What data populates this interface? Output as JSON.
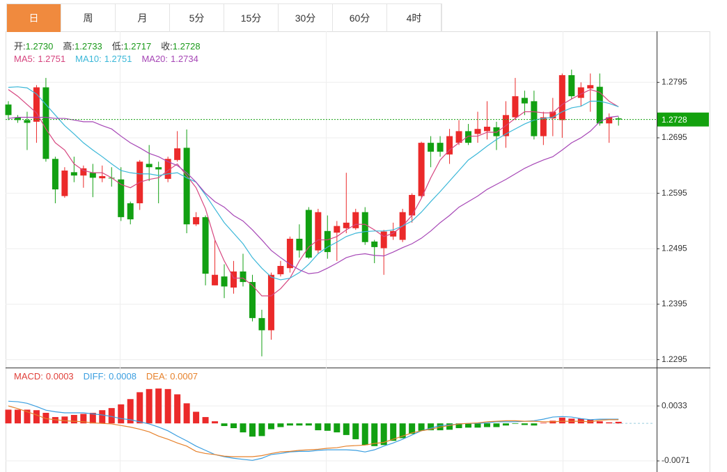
{
  "tabs": [
    "日",
    "周",
    "月",
    "5分",
    "15分",
    "30分",
    "60分",
    "4时"
  ],
  "active_tab": 0,
  "chart_data": [
    {
      "type": "candlestick",
      "up_color": "#eb2a2a",
      "down_color": "#12a012",
      "quote_color": "#1a9a1a",
      "quote": [
        {
          "name": "开:",
          "value": "1.2730"
        },
        {
          "name": "高:",
          "value": "1.2733"
        },
        {
          "name": "低:",
          "value": "1.2717"
        },
        {
          "name": "收:",
          "value": "1.2728"
        }
      ],
      "open": [
        1.2755,
        1.2732,
        1.2727,
        1.2724,
        1.2786,
        1.2657,
        1.259,
        1.2633,
        1.2627,
        1.2632,
        1.2622,
        1.2623,
        1.262,
        1.2577,
        1.2577,
        1.2648,
        1.2642,
        1.2621,
        1.2655,
        1.2677,
        1.2539,
        1.2552,
        1.2429,
        1.2445,
        1.2425,
        1.2454,
        1.2435,
        1.237,
        1.2348,
        1.2449,
        1.246,
        1.2513,
        1.2565,
        1.2492,
        1.2527,
        1.2524,
        1.2532,
        1.2532,
        1.2561,
        1.2508,
        1.2496,
        1.2517,
        1.2511,
        1.2555,
        1.259,
        1.2686,
        1.2686,
        1.2665,
        1.2686,
        1.2707,
        1.2702,
        1.2707,
        1.2714,
        1.2698,
        1.2732,
        1.2767,
        1.2761,
        1.2698,
        1.273,
        1.2727,
        1.2808,
        1.2767,
        1.2784,
        1.2787,
        1.2721,
        1.273
      ],
      "high": [
        1.2761,
        1.2736,
        1.2742,
        1.279,
        1.2803,
        1.2661,
        1.2642,
        1.2661,
        1.2645,
        1.2648,
        1.2645,
        1.2642,
        1.2642,
        1.258,
        1.2655,
        1.2682,
        1.2652,
        1.2661,
        1.2707,
        1.271,
        1.2561,
        1.2555,
        1.2511,
        1.2467,
        1.2473,
        1.2486,
        1.2448,
        1.2385,
        1.2452,
        1.2473,
        1.2517,
        1.2539,
        1.257,
        1.2567,
        1.2555,
        1.2545,
        1.2632,
        1.2567,
        1.257,
        1.2511,
        1.2529,
        1.2542,
        1.2567,
        1.2595,
        1.2688,
        1.2698,
        1.2698,
        1.2711,
        1.2727,
        1.272,
        1.2742,
        1.2761,
        1.2724,
        1.2761,
        1.2803,
        1.278,
        1.278,
        1.2742,
        1.2767,
        1.2811,
        1.2818,
        1.2795,
        1.2811,
        1.2811,
        1.2739,
        1.2733
      ],
      "low": [
        1.2727,
        1.2722,
        1.2673,
        1.2686,
        1.2652,
        1.2577,
        1.2587,
        1.2615,
        1.2605,
        1.2588,
        1.2615,
        1.2607,
        1.2545,
        1.2539,
        1.2565,
        1.2617,
        1.2577,
        1.2615,
        1.2652,
        1.2523,
        1.2536,
        1.2429,
        1.2429,
        1.2406,
        1.2414,
        1.2427,
        1.2364,
        1.2301,
        1.2331,
        1.2445,
        1.2452,
        1.2479,
        1.2477,
        1.2486,
        1.2477,
        1.2473,
        1.2523,
        1.2529,
        1.2502,
        1.2469,
        1.2448,
        1.2511,
        1.2507,
        1.2542,
        1.2586,
        1.2642,
        1.2661,
        1.2648,
        1.2682,
        1.2682,
        1.2686,
        1.2692,
        1.2673,
        1.2677,
        1.2727,
        1.2736,
        1.2692,
        1.2682,
        1.2698,
        1.2695,
        1.2765,
        1.2752,
        1.2742,
        1.2717,
        1.2686,
        1.2717
      ],
      "close": [
        1.2736,
        1.2727,
        1.2722,
        1.2786,
        1.2657,
        1.2602,
        1.2636,
        1.2627,
        1.264,
        1.2623,
        1.2626,
        1.2622,
        1.2552,
        1.2548,
        1.2652,
        1.2642,
        1.2638,
        1.2657,
        1.2676,
        1.2539,
        1.2552,
        1.245,
        1.2448,
        1.2427,
        1.2454,
        1.2435,
        1.237,
        1.2348,
        1.2448,
        1.2464,
        1.2513,
        1.2492,
        1.2479,
        1.2561,
        1.2489,
        1.2536,
        1.2542,
        1.2561,
        1.2507,
        1.2498,
        1.2526,
        1.2527,
        1.2561,
        1.2592,
        1.2686,
        1.267,
        1.267,
        1.2698,
        1.2707,
        1.2686,
        1.2711,
        1.2715,
        1.2698,
        1.2736,
        1.277,
        1.2757,
        1.2698,
        1.2732,
        1.2742,
        1.2808,
        1.277,
        1.2786,
        1.279,
        1.2721,
        1.2732,
        1.2728
      ],
      "series": [
        {
          "name": "MA5:",
          "legend_value": "1.2751",
          "color": "#d6457f",
          "values": [
            1.2782,
            1.277,
            1.2755,
            1.274,
            1.2711,
            1.2686,
            1.2673,
            1.2648,
            1.2636,
            1.2632,
            1.2632,
            1.2623,
            1.2611,
            1.2605,
            1.2615,
            1.262,
            1.2623,
            1.2636,
            1.2648,
            1.2627,
            1.2605,
            1.2567,
            1.2511,
            1.2473,
            1.2442,
            1.2442,
            1.2429,
            1.241,
            1.241,
            1.2423,
            1.2442,
            1.2473,
            1.2498,
            1.2511,
            1.2511,
            1.2517,
            1.2529,
            1.2539,
            1.2539,
            1.2529,
            1.2517,
            1.2523,
            1.2536,
            1.2555,
            1.2586,
            1.2623,
            1.2655,
            1.2673,
            1.2686,
            1.2698,
            1.2698,
            1.2705,
            1.2705,
            1.2717,
            1.273,
            1.2742,
            1.2742,
            1.274,
            1.274,
            1.2755,
            1.2765,
            1.2774,
            1.2782,
            1.2777,
            1.2761,
            1.2751
          ]
        },
        {
          "name": "MA10:",
          "legend_value": "1.2751",
          "color": "#3ab7d8",
          "values": [
            1.2786,
            1.2787,
            1.2785,
            1.2774,
            1.2755,
            1.2736,
            1.2717,
            1.2702,
            1.2686,
            1.2673,
            1.2661,
            1.2648,
            1.2636,
            1.2632,
            1.263,
            1.263,
            1.2627,
            1.263,
            1.2632,
            1.2623,
            1.2615,
            1.2592,
            1.2567,
            1.2542,
            1.2523,
            1.2504,
            1.2479,
            1.246,
            1.2444,
            1.2439,
            1.2442,
            1.2452,
            1.2467,
            1.2486,
            1.2498,
            1.2507,
            1.2517,
            1.2523,
            1.2526,
            1.2527,
            1.2527,
            1.2529,
            1.2536,
            1.2545,
            1.2561,
            1.258,
            1.2598,
            1.2617,
            1.2636,
            1.2655,
            1.2667,
            1.268,
            1.2692,
            1.2702,
            1.2711,
            1.272,
            1.2727,
            1.273,
            1.2732,
            1.2742,
            1.2749,
            1.2752,
            1.2761,
            1.2761,
            1.2757,
            1.2751
          ]
        },
        {
          "name": "MA20:",
          "legend_value": "1.2734",
          "color": "#a646b6",
          "values": [
            1.273,
            1.2732,
            1.2732,
            1.2732,
            1.2732,
            1.273,
            1.273,
            1.2727,
            1.2724,
            1.2724,
            1.2717,
            1.2711,
            1.2698,
            1.2686,
            1.2677,
            1.2667,
            1.2661,
            1.2652,
            1.2645,
            1.2632,
            1.2615,
            1.2595,
            1.258,
            1.257,
            1.2555,
            1.2545,
            1.2529,
            1.2511,
            1.2492,
            1.2479,
            1.2467,
            1.2457,
            1.245,
            1.2452,
            1.246,
            1.2469,
            1.2479,
            1.2484,
            1.2486,
            1.2483,
            1.2482,
            1.2489,
            1.2497,
            1.2504,
            1.2514,
            1.2527,
            1.2542,
            1.2555,
            1.257,
            1.258,
            1.259,
            1.2602,
            1.2611,
            1.262,
            1.263,
            1.264,
            1.2648,
            1.2655,
            1.2661,
            1.2673,
            1.2686,
            1.2695,
            1.2707,
            1.2724,
            1.2732,
            1.2734
          ]
        }
      ],
      "ylim": [
        1.2282,
        1.2887
      ],
      "yticks": [
        1.2795,
        1.2695,
        1.2595,
        1.2495,
        1.2395,
        1.2295
      ],
      "grid": true,
      "last_price": 1.2728,
      "last_price_color": "#13a10e"
    },
    {
      "type": "macd",
      "up_color": "#eb2a2a",
      "down_color": "#12a012",
      "series": [
        {
          "name": "MACD:",
          "legend_value": "0.0003",
          "color": "#e0403a",
          "values": [
            0.0026,
            0.0026,
            0.0026,
            0.0025,
            0.002,
            0.0012,
            0.0013,
            0.0016,
            0.0018,
            0.002,
            0.0025,
            0.0029,
            0.0036,
            0.0046,
            0.0059,
            0.0065,
            0.0066,
            0.0065,
            0.0055,
            0.0038,
            0.0022,
            0.0012,
            0.0004,
            -0.0005,
            -0.0009,
            -0.0017,
            -0.0025,
            -0.0024,
            -0.0011,
            -0.0007,
            -0.0004,
            -0.0004,
            -0.0004,
            -0.0013,
            -0.0014,
            -0.0017,
            -0.0022,
            -0.003,
            -0.0041,
            -0.0043,
            -0.0041,
            -0.0033,
            -0.0028,
            -0.002,
            -0.0014,
            -0.0013,
            -0.0013,
            -0.0012,
            -0.0009,
            -0.0008,
            -0.0008,
            -0.0007,
            -0.0007,
            -0.0004,
            -0.0001,
            -0.0003,
            -0.0004,
            0.0001,
            0.0005,
            0.0011,
            0.0009,
            0.0009,
            0.0007,
            0.0004,
            0.0002,
            0.0003
          ]
        },
        {
          "name": "DIFF:",
          "legend_value": "0.0008",
          "color": "#3a9ee0",
          "values": [
            0.0042,
            0.0041,
            0.0038,
            0.0032,
            0.0025,
            0.0022,
            0.002,
            0.002,
            0.002,
            0.0018,
            0.0016,
            0.0013,
            0.0009,
            0.0007,
            0.0003,
            -0.0001,
            -0.0007,
            -0.0014,
            -0.0024,
            -0.0033,
            -0.0043,
            -0.0051,
            -0.0059,
            -0.0063,
            -0.0066,
            -0.0068,
            -0.007,
            -0.0066,
            -0.0059,
            -0.0057,
            -0.0054,
            -0.0053,
            -0.0053,
            -0.0051,
            -0.005,
            -0.005,
            -0.005,
            -0.0051,
            -0.0054,
            -0.005,
            -0.0043,
            -0.0037,
            -0.003,
            -0.0022,
            -0.0014,
            -0.0009,
            -0.0004,
            -0.0003,
            -0.0001,
            0,
            0,
            0.0001,
            0.0003,
            0.0003,
            0.0003,
            0.0004,
            0.0005,
            0.0008,
            0.0012,
            0.0013,
            0.0012,
            0.0009,
            0.0007,
            0.0008,
            0.0008,
            0.0008
          ]
        },
        {
          "name": "DEA:",
          "legend_value": "0.0007",
          "color": "#e6812b",
          "values": [
            0.0033,
            0.0028,
            0.0022,
            0.0016,
            0.0009,
            0.0007,
            0.0005,
            0.0004,
            0.0003,
            0.0001,
            0,
            -0.0001,
            -0.0004,
            -0.0007,
            -0.0011,
            -0.0016,
            -0.0024,
            -0.003,
            -0.0037,
            -0.0043,
            -0.0053,
            -0.0057,
            -0.0059,
            -0.0062,
            -0.0063,
            -0.0063,
            -0.0063,
            -0.0061,
            -0.0057,
            -0.0054,
            -0.0053,
            -0.0051,
            -0.005,
            -0.0049,
            -0.0047,
            -0.0046,
            -0.0043,
            -0.0042,
            -0.0041,
            -0.0038,
            -0.0036,
            -0.003,
            -0.0024,
            -0.0018,
            -0.0014,
            -0.0011,
            -0.0007,
            -0.0004,
            -0.0001,
            0,
            0.0001,
            0.0003,
            0.0004,
            0.0005,
            0.0005,
            0.0004,
            0.0004,
            0.0003,
            0.0003,
            0.0004,
            0.0004,
            0.0004,
            0.0003,
            0.0006,
            0.0007,
            0.0007
          ]
        }
      ],
      "ylim": [
        -0.0092,
        0.0103
      ],
      "yticks": [
        0.0033,
        -0.0071
      ]
    }
  ]
}
